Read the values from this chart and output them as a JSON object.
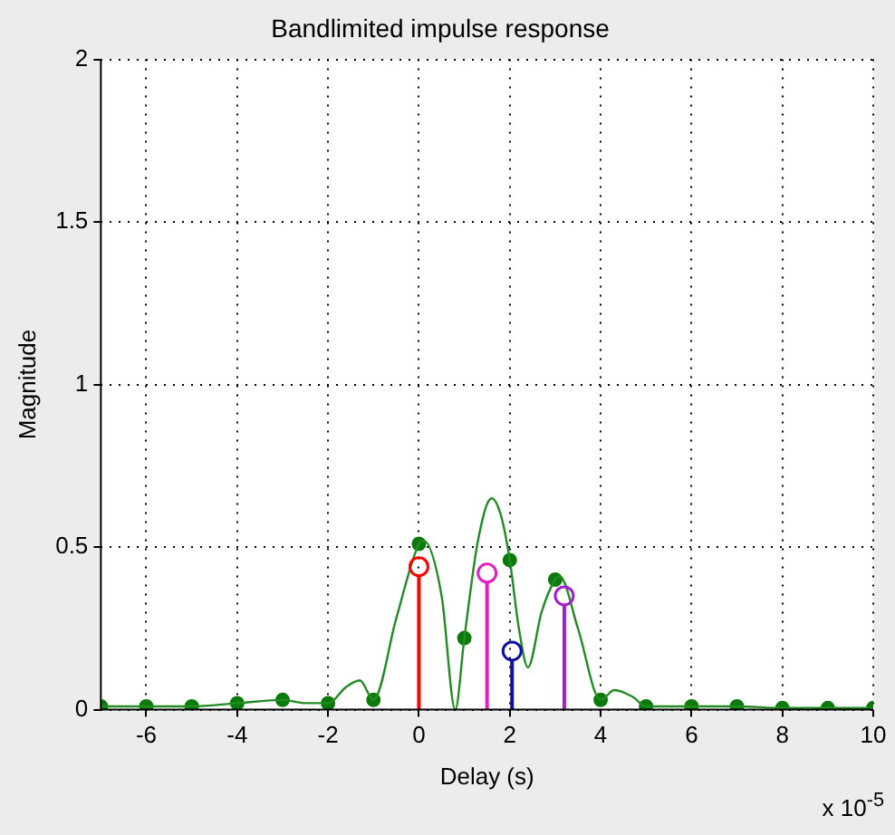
{
  "chart_data": {
    "type": "line",
    "title": "Bandlimited impulse response",
    "xlabel": "Delay (s)",
    "ylabel": "Magnitude",
    "annotations": [
      "x 10$^{-5}$"
    ],
    "xlim": [
      -7,
      10
    ],
    "xticks": [
      -6,
      -4,
      -2,
      0,
      2,
      4,
      6,
      8,
      10
    ],
    "ylim": [
      0,
      2
    ],
    "yticks": [
      0,
      0.5,
      1,
      1.5,
      2
    ],
    "grid": true,
    "legend": false,
    "series": [
      {
        "type": "line",
        "color": "#228b22",
        "marker": "none",
        "x": [
          -7,
          -6,
          -5,
          -4,
          -3,
          -2.5,
          -2,
          -1.6,
          -1.3,
          -1,
          -0.5,
          0,
          0.1,
          0.5,
          0.8,
          1,
          1.3,
          1.6,
          1.8,
          2,
          2.2,
          2.4,
          2.7,
          3,
          3.1,
          3.5,
          4,
          4.3,
          4.7,
          5,
          6,
          7,
          8,
          9,
          10
        ],
        "values": [
          0.01,
          0.01,
          0.01,
          0.02,
          0.03,
          0.02,
          0.02,
          0.07,
          0.09,
          0.03,
          0.28,
          0.51,
          0.52,
          0.35,
          0,
          0.22,
          0.52,
          0.65,
          0.6,
          0.46,
          0.25,
          0.13,
          0.3,
          0.4,
          0.41,
          0.25,
          0.03,
          0.06,
          0.04,
          0.01,
          0.01,
          0.01,
          0.005,
          0.005,
          0.005
        ]
      },
      {
        "type": "scatter",
        "color": "#0a7a0a",
        "marker": "circle",
        "x": [
          -7,
          -6,
          -5,
          -4,
          -3,
          -2,
          -1,
          0,
          1,
          2,
          3,
          4,
          5,
          6,
          7,
          8,
          9,
          10
        ],
        "values": [
          0.01,
          0.01,
          0.01,
          0.02,
          0.03,
          0.02,
          0.03,
          0.51,
          0.22,
          0.46,
          0.4,
          0.03,
          0.01,
          0.01,
          0.01,
          0.005,
          0.005,
          0.005
        ]
      },
      {
        "type": "lollipop",
        "color": "#ff0000",
        "x": [
          0
        ],
        "values": [
          0.44
        ]
      },
      {
        "type": "lollipop",
        "color": "#e020c0",
        "x": [
          1.5
        ],
        "values": [
          0.42
        ]
      },
      {
        "type": "lollipop",
        "color": "#1010a0",
        "x": [
          2.05
        ],
        "values": [
          0.18
        ]
      },
      {
        "type": "lollipop",
        "color": "#a020d0",
        "x": [
          3.2
        ],
        "values": [
          0.35
        ]
      }
    ]
  }
}
